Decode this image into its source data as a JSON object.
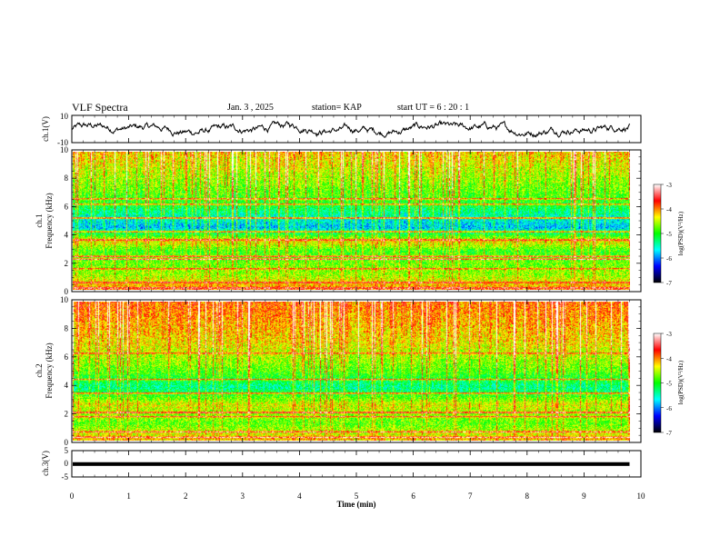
{
  "header": {
    "title": "VLF Spectra",
    "date": "Jan. 3 , 2025",
    "station": "station= KAP",
    "start": "start UT = 6 : 20 : 1"
  },
  "colorbar": {
    "label": "log(PSD)(V²/Hz)",
    "ticks": [
      "-3",
      "-4",
      "-5",
      "-6",
      "-7"
    ],
    "stops": [
      "#ffffff",
      "#ff0000",
      "#ffff00",
      "#00ff00",
      "#00ffff",
      "#0000ff",
      "#000000"
    ]
  },
  "chart_data": [
    {
      "type": "line",
      "name": "ch.1",
      "ylabel": "ch.1(V)",
      "ylim": [
        -10,
        10
      ],
      "yticks": [
        "10",
        "-10"
      ],
      "xlim": [
        0,
        10
      ],
      "description_note": "noisy waveform oscillating roughly between -5 and +5 V",
      "y_range_observed": [
        -6,
        7
      ]
    },
    {
      "type": "heatmap",
      "name": "ch.1 spectrogram",
      "ylabel_line1": "ch.1",
      "ylabel_line2": "Frequency (kHz)",
      "ylim": [
        0,
        10
      ],
      "yticks": [
        "0",
        "2",
        "4",
        "6",
        "8",
        "10"
      ],
      "xlim": [
        0,
        9.8
      ],
      "zlim": [
        -7,
        -3
      ],
      "bands": [
        {
          "freq_khz": 0.1,
          "level": -3.2
        },
        {
          "freq_khz": 0.5,
          "level": -3.3
        },
        {
          "freq_khz": 1.5,
          "level": -3.6
        },
        {
          "freq_khz": 2.2,
          "level": -3.1
        },
        {
          "freq_khz": 2.4,
          "level": -3.3
        },
        {
          "freq_khz": 3.6,
          "level": -3.4
        },
        {
          "freq_khz": 4.2,
          "level": -3.5
        },
        {
          "freq_khz": 5.2,
          "level": -3.1
        },
        {
          "freq_khz": 6.2,
          "level": -3.7
        },
        {
          "freq_khz": 6.6,
          "level": -3.6
        }
      ],
      "background_profile": [
        {
          "freq_khz": 0,
          "level": -4.0
        },
        {
          "freq_khz": 1,
          "level": -4.6
        },
        {
          "freq_khz": 2.8,
          "level": -4.9
        },
        {
          "freq_khz": 3.5,
          "level": -4.3
        },
        {
          "freq_khz": 4.5,
          "level": -5.8
        },
        {
          "freq_khz": 5.5,
          "level": -5.4
        },
        {
          "freq_khz": 6.5,
          "level": -4.9
        },
        {
          "freq_khz": 8,
          "level": -4.6
        },
        {
          "freq_khz": 10,
          "level": -4.2
        }
      ]
    },
    {
      "type": "heatmap",
      "name": "ch.2 spectrogram",
      "ylabel_line1": "ch.2",
      "ylabel_line2": "Frequency (kHz)",
      "ylim": [
        0,
        10
      ],
      "yticks": [
        "0",
        "2",
        "4",
        "6",
        "8",
        "10"
      ],
      "xlim": [
        0,
        9.8
      ],
      "zlim": [
        -7,
        -3
      ],
      "bands": [
        {
          "freq_khz": 0.2,
          "level": -3.2
        },
        {
          "freq_khz": 0.6,
          "level": -3.3
        },
        {
          "freq_khz": 1.7,
          "level": -3.5
        },
        {
          "freq_khz": 2.0,
          "level": -3.1
        },
        {
          "freq_khz": 3.4,
          "level": -3.4
        },
        {
          "freq_khz": 4.4,
          "level": -3.7
        },
        {
          "freq_khz": 6.3,
          "level": -3.6
        }
      ],
      "background_profile": [
        {
          "freq_khz": 0,
          "level": -4.2
        },
        {
          "freq_khz": 1.2,
          "level": -4.8
        },
        {
          "freq_khz": 2.6,
          "level": -4.4
        },
        {
          "freq_khz": 3.8,
          "level": -5.4
        },
        {
          "freq_khz": 5,
          "level": -4.8
        },
        {
          "freq_khz": 7,
          "level": -4.3
        },
        {
          "freq_khz": 10,
          "level": -3.9
        }
      ]
    },
    {
      "type": "line",
      "name": "ch.3",
      "ylabel": "ch.3(V)",
      "ylim": [
        -5,
        5
      ],
      "yticks": [
        "5",
        "0",
        "-5"
      ],
      "xlim": [
        0,
        10
      ],
      "xlabel": "Time (min)",
      "xticks": [
        "0",
        "1",
        "2",
        "3",
        "4",
        "5",
        "6",
        "7",
        "8",
        "9",
        "10"
      ],
      "y_range_observed": [
        -0.8,
        0.6
      ]
    }
  ]
}
